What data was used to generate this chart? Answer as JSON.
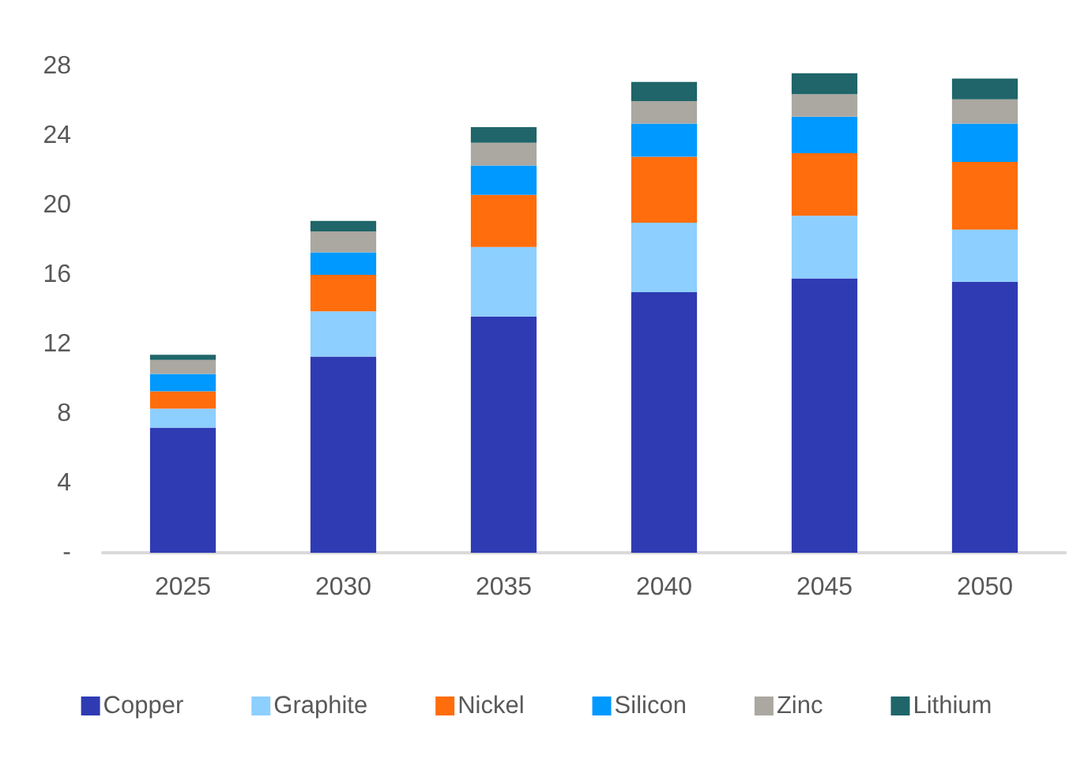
{
  "chart_data": {
    "type": "bar",
    "stacked": true,
    "categories": [
      "2025",
      "2030",
      "2035",
      "2040",
      "2045",
      "2050"
    ],
    "series": [
      {
        "name": "Copper",
        "color": "#2e3bb3",
        "values": [
          7.2,
          11.3,
          13.6,
          15.0,
          15.8,
          15.6
        ]
      },
      {
        "name": "Graphite",
        "color": "#8dcfff",
        "values": [
          1.1,
          2.6,
          4.0,
          4.0,
          3.6,
          3.0
        ]
      },
      {
        "name": "Nickel",
        "color": "#ff6d0c",
        "values": [
          1.0,
          2.1,
          3.0,
          3.8,
          3.6,
          3.9
        ]
      },
      {
        "name": "Silicon",
        "color": "#0099ff",
        "values": [
          1.0,
          1.3,
          1.7,
          1.9,
          2.1,
          2.2
        ]
      },
      {
        "name": "Zinc",
        "color": "#aba7a1",
        "values": [
          0.8,
          1.2,
          1.3,
          1.3,
          1.3,
          1.4
        ]
      },
      {
        "name": "Lithium",
        "color": "#1f6569",
        "values": [
          0.3,
          0.6,
          0.9,
          1.1,
          1.2,
          1.2
        ]
      }
    ],
    "ylim": [
      0,
      28
    ],
    "yticks": [
      {
        "value": 0,
        "label": "-"
      },
      4,
      8,
      12,
      16,
      20,
      24,
      28
    ],
    "grid": false,
    "legend": "bottom"
  }
}
